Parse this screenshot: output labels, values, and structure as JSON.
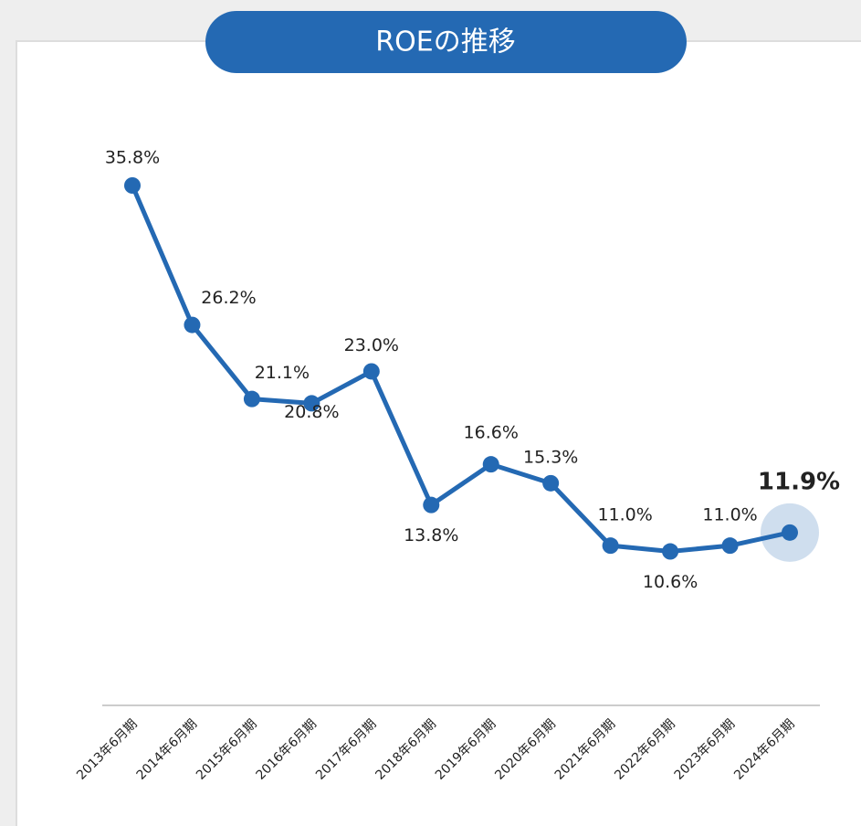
{
  "chart_data": {
    "type": "line",
    "title": "ROEの推移",
    "categories": [
      "2013年6月期",
      "2014年6月期",
      "2015年6月期",
      "2016年6月期",
      "2017年6月期",
      "2018年6月期",
      "2019年6月期",
      "2020年6月期",
      "2021年6月期",
      "2022年6月期",
      "2023年6月期",
      "2024年6月期"
    ],
    "series": [
      {
        "name": "ROE",
        "color": "#2469b3",
        "values": [
          35.8,
          26.2,
          21.1,
          20.8,
          23.0,
          13.8,
          16.6,
          15.3,
          11.0,
          10.6,
          11.0,
          11.9
        ],
        "value_labels": [
          "35.8%",
          "26.2%",
          "21.1%",
          "20.8%",
          "23.0%",
          "13.8%",
          "16.6%",
          "15.3%",
          "11.0%",
          "10.6%",
          "11.0%",
          "11.9%"
        ]
      }
    ]
  }
}
